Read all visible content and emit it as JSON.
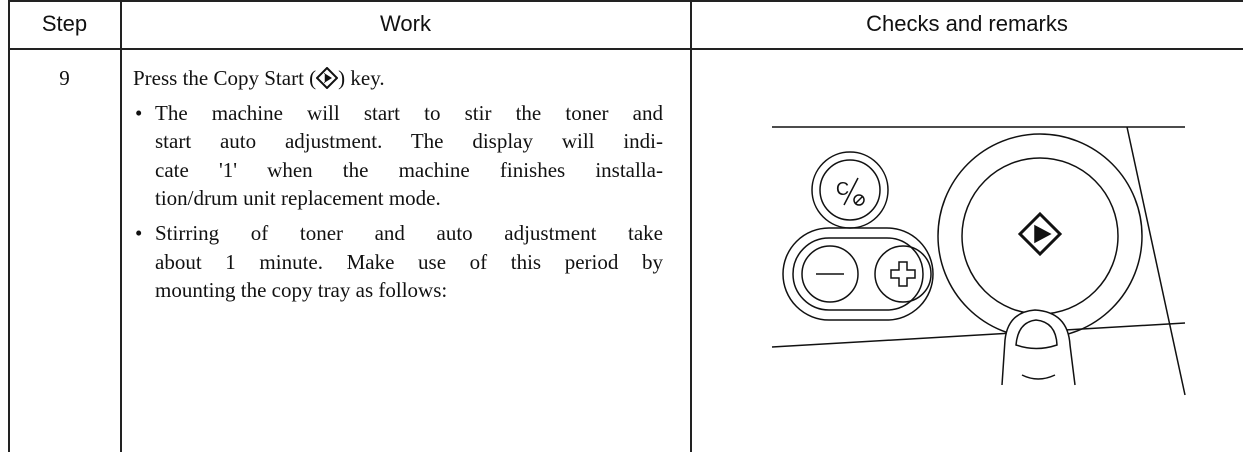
{
  "table": {
    "header": [
      "Step",
      "Work",
      "Checks and remarks"
    ],
    "rows": [
      {
        "step": "9",
        "intro": {
          "before": "Press the Copy Start (",
          "after": ") key."
        },
        "bullets": [
          [
            "The machine will start to stir the toner and",
            "start auto adjustment. The display will indi-",
            "cate '1' when the machine finishes installa-",
            "tion/drum unit replacement mode."
          ],
          [
            "Stirring of toner and auto adjustment take",
            "about 1 minute. Make use of this period by",
            "mounting the copy tray as follows:"
          ]
        ]
      }
    ]
  },
  "illustration": {
    "clear_key_label": "C"
  }
}
